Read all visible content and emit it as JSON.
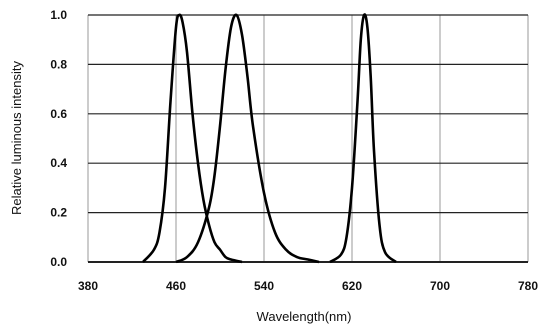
{
  "chart_data": {
    "type": "line",
    "title": "",
    "xlabel": "Wavelength(nm)",
    "ylabel": "Relative luminous intensity",
    "xlim": [
      380,
      780
    ],
    "ylim": [
      0,
      1.0
    ],
    "x_ticks": [
      "380",
      "460",
      "540",
      "620",
      "700",
      "780"
    ],
    "y_ticks": [
      "0.0",
      "0.2",
      "0.4",
      "0.6",
      "0.8",
      "1.0"
    ],
    "grid": "vertical and horizontal at labeled ticks",
    "legend": "none",
    "line_color": "#000000",
    "series": [
      {
        "x": [
          430,
          440,
          445,
          450,
          455,
          460,
          463,
          466,
          470,
          475,
          480,
          485,
          490,
          495,
          500,
          505,
          510,
          520
        ],
        "y": [
          0.0,
          0.05,
          0.12,
          0.3,
          0.65,
          0.95,
          1.0,
          0.97,
          0.85,
          0.6,
          0.4,
          0.25,
          0.15,
          0.08,
          0.05,
          0.02,
          0.01,
          0.0
        ]
      },
      {
        "x": [
          460,
          470,
          480,
          490,
          495,
          500,
          505,
          510,
          515,
          520,
          525,
          530,
          540,
          550,
          560,
          570,
          580,
          590
        ],
        "y": [
          0.0,
          0.02,
          0.08,
          0.22,
          0.35,
          0.55,
          0.78,
          0.95,
          1.0,
          0.92,
          0.75,
          0.55,
          0.28,
          0.12,
          0.05,
          0.02,
          0.01,
          0.0
        ]
      },
      {
        "x": [
          600,
          610,
          615,
          620,
          625,
          628,
          631,
          634,
          637,
          640,
          645,
          650,
          660
        ],
        "y": [
          0.0,
          0.03,
          0.1,
          0.3,
          0.65,
          0.9,
          1.0,
          0.95,
          0.75,
          0.45,
          0.15,
          0.04,
          0.0
        ]
      }
    ]
  }
}
